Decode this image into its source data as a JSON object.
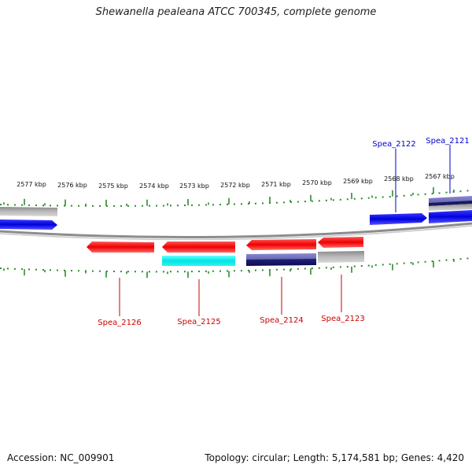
{
  "title": "Shewanella pealeana ATCC 700345, complete genome",
  "footer": {
    "accession": "Accession: NC_009901",
    "summary": "Topology: circular; Length: 5,174,581 bp; Genes: 4,420"
  },
  "kbp_labels": [
    "2577 kbp",
    "2576 kbp",
    "2575 kbp",
    "2574 kbp",
    "2573 kbp",
    "2572 kbp",
    "2571 kbp",
    "2570 kbp",
    "2569 kbp",
    "2568 kbp",
    "2567 kbp"
  ],
  "genes": {
    "spea_2121": "Spea_2121",
    "spea_2122": "Spea_2122",
    "spea_2123": "Spea_2123",
    "spea_2124": "Spea_2124",
    "spea_2125": "Spea_2125",
    "spea_2126": "Spea_2126"
  },
  "colors": {
    "forward_gene": "#0000dd",
    "reverse_gene": "#ee0000",
    "cyan_feature": "#00e5e5",
    "navy_feature": "#1a1a80",
    "gray_feature": "#aaaaaa",
    "backbone": "#888888",
    "tick": "#2e8b2e",
    "forward_label": "#0000cc",
    "reverse_label": "#cc0000"
  }
}
